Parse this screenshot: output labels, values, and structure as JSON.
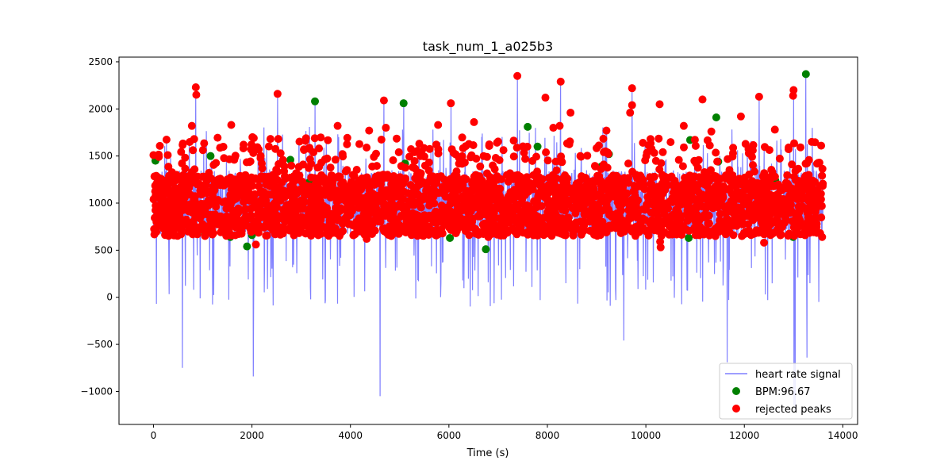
{
  "chart_data": {
    "type": "line",
    "title": "task_num_1_a025b3",
    "xlabel": "Time (s)",
    "ylabel": "",
    "xlim": [
      -700,
      14300
    ],
    "ylim": [
      -1350,
      2550
    ],
    "x_ticks": [
      0,
      2000,
      4000,
      6000,
      8000,
      10000,
      12000,
      14000
    ],
    "y_ticks": [
      -1000,
      -500,
      0,
      500,
      1000,
      1500,
      2000,
      2500
    ],
    "x_tick_labels": [
      "0",
      "2000",
      "4000",
      "6000",
      "8000",
      "10000",
      "12000",
      "14000"
    ],
    "y_tick_labels": [
      "−1000",
      "−500",
      "0",
      "500",
      "1000",
      "1500",
      "2000",
      "2500"
    ],
    "grid": false,
    "legend_position": "lower-right",
    "x_range": [
      0,
      13600
    ],
    "colors": {
      "signal": "#7f7fff",
      "accepted": "#008000",
      "rejected": "#ff0000"
    },
    "series": [
      {
        "name": "heart rate signal",
        "kind": "line",
        "baseline": 900,
        "spikes": [
          {
            "x": 860,
            "y": 2230
          },
          {
            "x": 2520,
            "y": 2150
          },
          {
            "x": 3280,
            "y": 2080
          },
          {
            "x": 4680,
            "y": 2090
          },
          {
            "x": 5080,
            "y": 2060
          },
          {
            "x": 6040,
            "y": 2060
          },
          {
            "x": 7390,
            "y": 2350
          },
          {
            "x": 8270,
            "y": 2290
          },
          {
            "x": 9720,
            "y": 2220
          },
          {
            "x": 12300,
            "y": 2130
          },
          {
            "x": 13000,
            "y": 2200
          },
          {
            "x": 13250,
            "y": 2370
          },
          {
            "x": 60,
            "y": -70
          },
          {
            "x": 590,
            "y": -750
          },
          {
            "x": 2030,
            "y": -840
          },
          {
            "x": 4600,
            "y": -1050
          },
          {
            "x": 9550,
            "y": -460
          },
          {
            "x": 11650,
            "y": -690
          },
          {
            "x": 13010,
            "y": -1150
          },
          {
            "x": 13030,
            "y": -1200
          },
          {
            "x": 13270,
            "y": -640
          }
        ]
      },
      {
        "name": "BPM:96.67",
        "kind": "scatter",
        "points": [
          {
            "x": 40,
            "y": 1450
          },
          {
            "x": 1050,
            "y": 670
          },
          {
            "x": 1160,
            "y": 1500
          },
          {
            "x": 1560,
            "y": 640
          },
          {
            "x": 1900,
            "y": 540
          },
          {
            "x": 2000,
            "y": 660
          },
          {
            "x": 2780,
            "y": 1460
          },
          {
            "x": 3160,
            "y": 1220
          },
          {
            "x": 3280,
            "y": 2080
          },
          {
            "x": 5080,
            "y": 2060
          },
          {
            "x": 5110,
            "y": 1420
          },
          {
            "x": 6020,
            "y": 630
          },
          {
            "x": 6750,
            "y": 510
          },
          {
            "x": 7600,
            "y": 1810
          },
          {
            "x": 7800,
            "y": 1600
          },
          {
            "x": 8500,
            "y": 740
          },
          {
            "x": 9100,
            "y": 1390
          },
          {
            "x": 9250,
            "y": 1520
          },
          {
            "x": 10900,
            "y": 1670
          },
          {
            "x": 10870,
            "y": 630
          },
          {
            "x": 11430,
            "y": 1910
          },
          {
            "x": 11470,
            "y": 1440
          },
          {
            "x": 12630,
            "y": 1240
          },
          {
            "x": 12990,
            "y": 640
          },
          {
            "x": 13250,
            "y": 2370
          },
          {
            "x": 9800,
            "y": 1300
          },
          {
            "x": 4450,
            "y": 1200
          },
          {
            "x": 3650,
            "y": 1250
          }
        ]
      },
      {
        "name": "rejected peaks",
        "kind": "scatter",
        "points": [
          {
            "x": 860,
            "y": 2230
          },
          {
            "x": 870,
            "y": 2150
          },
          {
            "x": 2520,
            "y": 2160
          },
          {
            "x": 4680,
            "y": 2090
          },
          {
            "x": 6040,
            "y": 2060
          },
          {
            "x": 7390,
            "y": 2350
          },
          {
            "x": 8270,
            "y": 2290
          },
          {
            "x": 9720,
            "y": 2220
          },
          {
            "x": 12300,
            "y": 2130
          },
          {
            "x": 13000,
            "y": 2200
          },
          {
            "x": 12990,
            "y": 2140
          },
          {
            "x": 7960,
            "y": 2120
          },
          {
            "x": 8470,
            "y": 1960
          },
          {
            "x": 10280,
            "y": 2050
          },
          {
            "x": 11150,
            "y": 2100
          },
          {
            "x": 11930,
            "y": 1920
          },
          {
            "x": 9720,
            "y": 2040
          },
          {
            "x": 9680,
            "y": 1960
          },
          {
            "x": 1580,
            "y": 1830
          },
          {
            "x": 780,
            "y": 1820
          },
          {
            "x": 2010,
            "y": 1700
          },
          {
            "x": 3740,
            "y": 1820
          },
          {
            "x": 4380,
            "y": 1770
          },
          {
            "x": 4720,
            "y": 1800
          },
          {
            "x": 5780,
            "y": 1830
          },
          {
            "x": 6510,
            "y": 1860
          },
          {
            "x": 8120,
            "y": 1800
          },
          {
            "x": 8250,
            "y": 1820
          },
          {
            "x": 9200,
            "y": 1770
          },
          {
            "x": 10770,
            "y": 1820
          },
          {
            "x": 11330,
            "y": 1760
          },
          {
            "x": 12620,
            "y": 1780
          },
          {
            "x": 13370,
            "y": 1650
          },
          {
            "x": 0,
            "y": 1510
          },
          {
            "x": 290,
            "y": 1510
          },
          {
            "x": 1640,
            "y": 1460
          },
          {
            "x": 2200,
            "y": 1420
          },
          {
            "x": 3410,
            "y": 1430
          },
          {
            "x": 5300,
            "y": 1540
          },
          {
            "x": 6890,
            "y": 1400
          },
          {
            "x": 7550,
            "y": 1470
          },
          {
            "x": 8670,
            "y": 1500
          },
          {
            "x": 10010,
            "y": 1500
          },
          {
            "x": 11770,
            "y": 1530
          },
          {
            "x": 13560,
            "y": 1610
          },
          {
            "x": 4330,
            "y": 620
          },
          {
            "x": 6800,
            "y": 640
          },
          {
            "x": 10290,
            "y": 590
          },
          {
            "x": 10300,
            "y": 530
          },
          {
            "x": 12400,
            "y": 580
          },
          {
            "x": 11950,
            "y": 650
          },
          {
            "x": 13580,
            "y": 640
          },
          {
            "x": 2080,
            "y": 560
          }
        ],
        "band": {
          "y_min": 650,
          "y_max": 1300
        }
      }
    ]
  }
}
